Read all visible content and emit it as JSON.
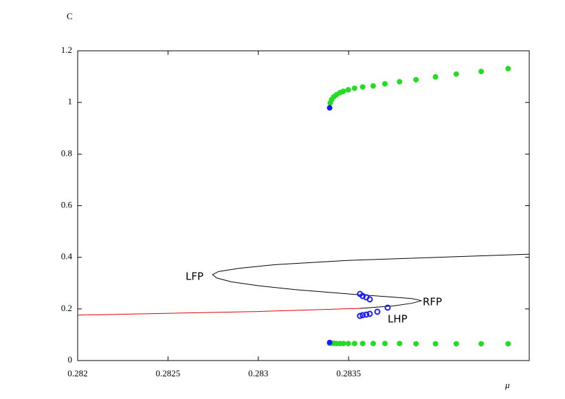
{
  "chart_data": {
    "type": "line",
    "ylabel": "C",
    "xlabel": "μ",
    "xlim": [
      0.282,
      0.2845
    ],
    "ylim": [
      0,
      1.2
    ],
    "xticks": [
      0.282,
      0.2825,
      0.283,
      0.2835
    ],
    "yticks": [
      0,
      0.2,
      0.4,
      0.6,
      0.8,
      1,
      1.2
    ],
    "series": [
      {
        "color": "#e00000",
        "style": "line",
        "x": [
          0.282,
          0.283,
          0.28356
        ],
        "values": [
          0.176,
          0.19,
          0.202
        ]
      },
      {
        "color": "#000000",
        "style": "line",
        "x": [
          0.28356,
          0.28375,
          0.28385,
          0.283904,
          0.28385,
          0.2837,
          0.2835,
          0.2832,
          0.283,
          0.28285,
          0.28277,
          0.282747,
          0.28278,
          0.2829,
          0.2831,
          0.2835,
          0.284,
          0.2845
        ],
        "values": [
          0.202,
          0.212,
          0.222,
          0.232,
          0.24,
          0.248,
          0.258,
          0.275,
          0.29,
          0.305,
          0.32,
          0.333,
          0.345,
          0.358,
          0.372,
          0.388,
          0.4,
          0.412
        ]
      },
      {
        "color": "#22dd22",
        "style": "dots",
        "x": [
          0.283395,
          0.283398,
          0.283406,
          0.283418,
          0.283433,
          0.283452,
          0.283471,
          0.283498,
          0.283533,
          0.283578,
          0.283636,
          0.283701,
          0.283782,
          0.283873,
          0.283981,
          0.284096,
          0.284234,
          0.284383
        ],
        "values": [
          0.979,
          0.998,
          1.011,
          1.022,
          1.03,
          1.038,
          1.043,
          1.049,
          1.055,
          1.06,
          1.064,
          1.072,
          1.08,
          1.088,
          1.099,
          1.11,
          1.12,
          1.131
        ]
      },
      {
        "color": "#22dd22",
        "style": "dots",
        "x": [
          0.283395,
          0.283398,
          0.283406,
          0.283418,
          0.283433,
          0.283452,
          0.283471,
          0.283498,
          0.283533,
          0.283578,
          0.283636,
          0.283701,
          0.283782,
          0.283873,
          0.283981,
          0.284096,
          0.284234,
          0.284383
        ],
        "values": [
          0.067,
          0.067,
          0.067,
          0.067,
          0.066,
          0.066,
          0.066,
          0.066,
          0.066,
          0.066,
          0.066,
          0.066,
          0.066,
          0.065,
          0.065,
          0.065,
          0.065,
          0.065
        ]
      },
      {
        "color": "#1a1aff",
        "style": "dots",
        "x": [
          0.283395,
          0.283395
        ],
        "values": [
          0.979,
          0.07
        ]
      },
      {
        "color": "#1a1aff",
        "style": "circles",
        "x": [
          0.283563,
          0.283578,
          0.283598,
          0.283617,
          0.283563,
          0.283578,
          0.283598,
          0.283617,
          0.283659,
          0.283716
        ],
        "values": [
          0.258,
          0.25,
          0.245,
          0.237,
          0.173,
          0.176,
          0.178,
          0.181,
          0.189,
          0.205
        ]
      }
    ],
    "annotations": [
      "LFP",
      "RFP",
      "LHP"
    ]
  }
}
